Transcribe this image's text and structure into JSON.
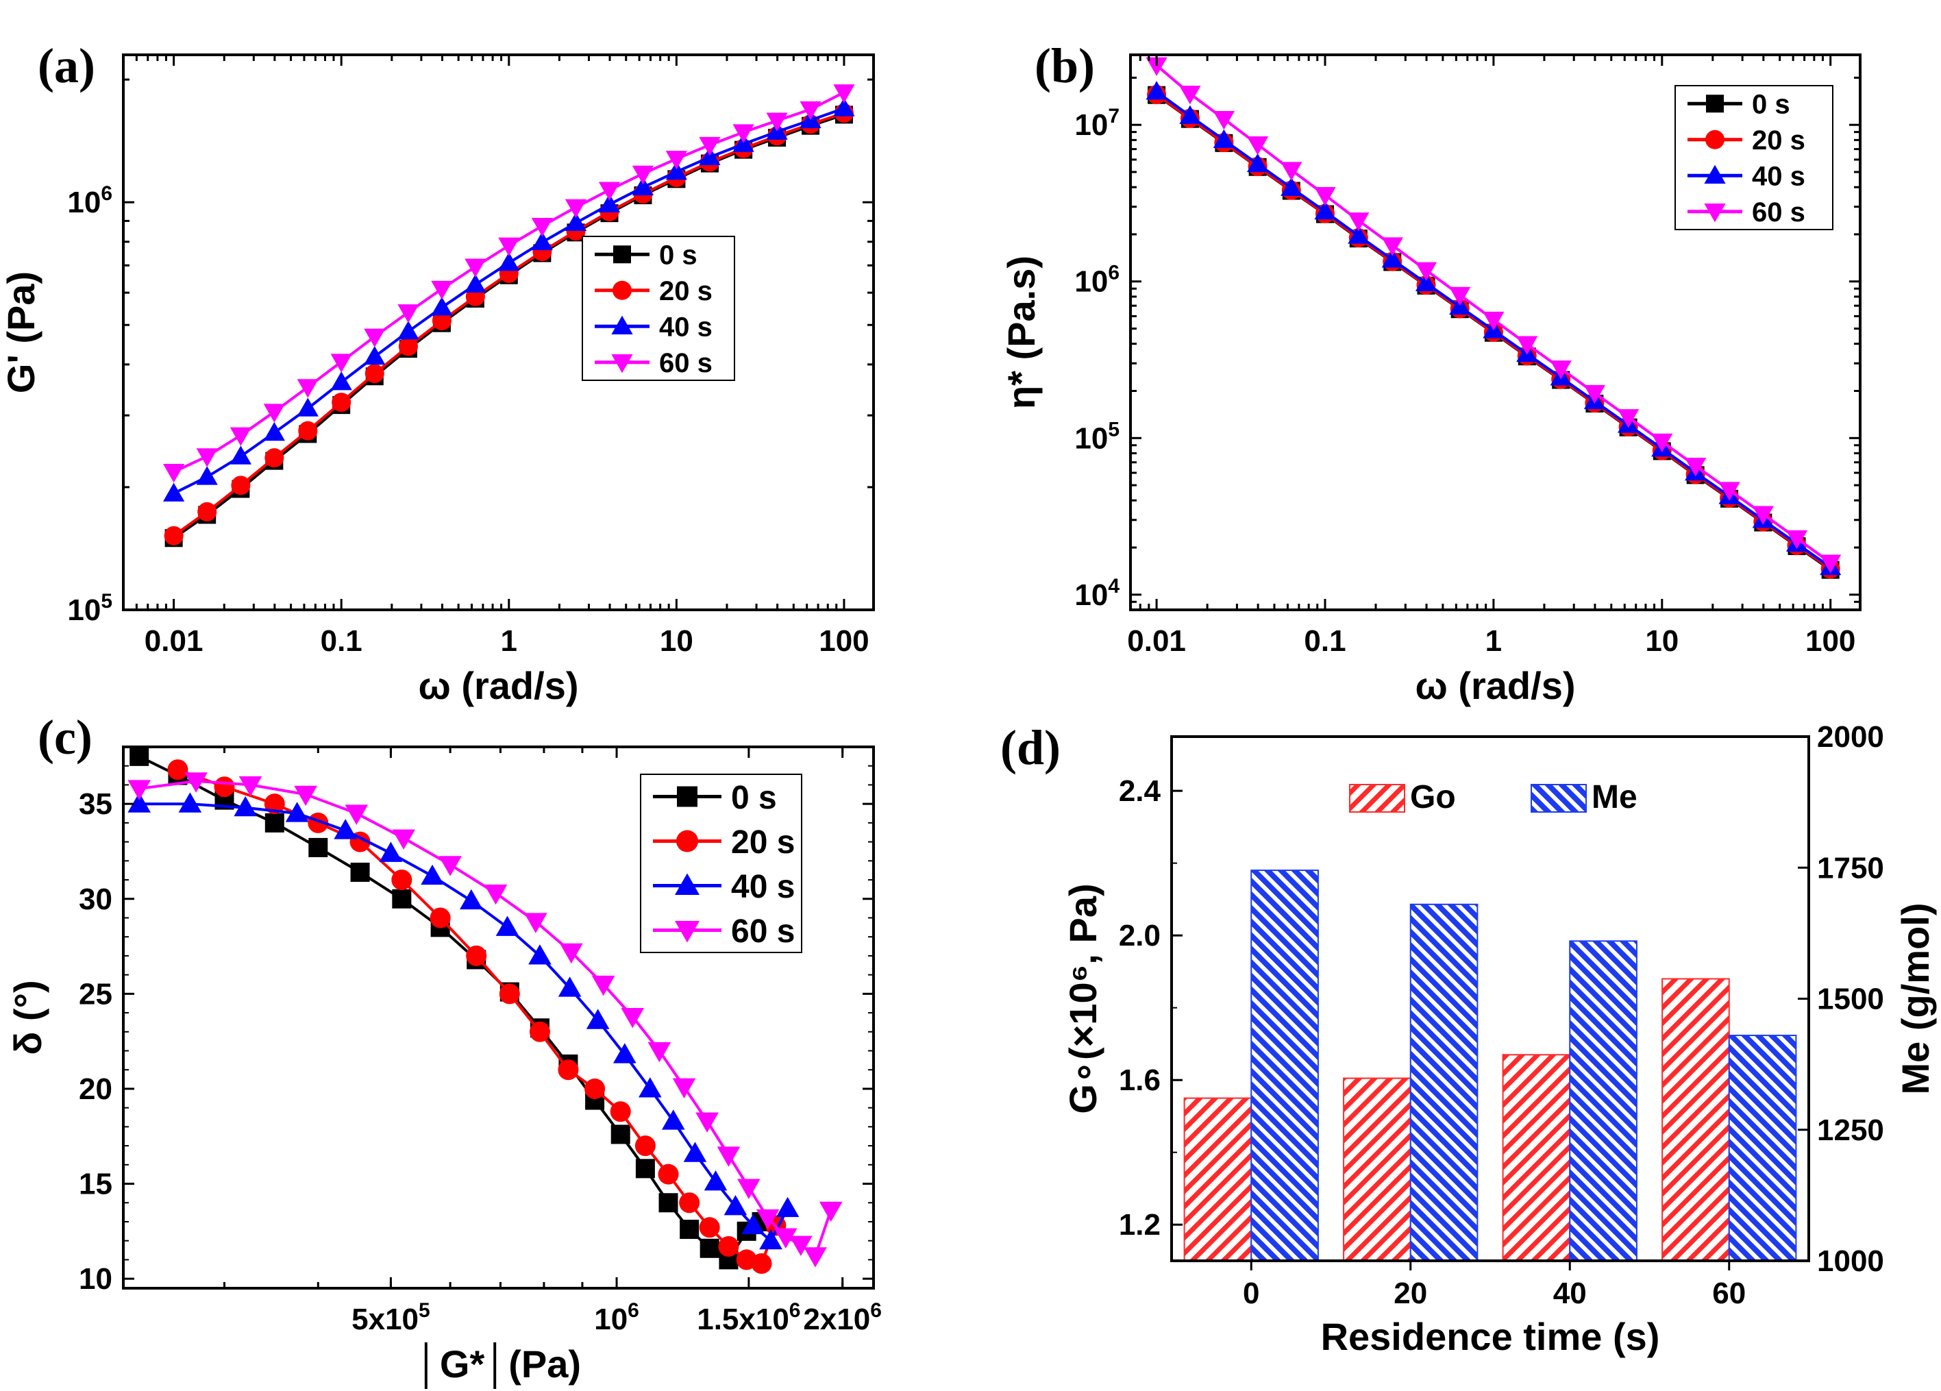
{
  "chart_data": [
    {
      "id": "a",
      "type": "line",
      "panel_label": "(a)",
      "xscale": "log",
      "yscale": "log",
      "xlim": [
        0.005,
        150
      ],
      "ylim": [
        100000,
        2300000
      ],
      "xticks": [
        {
          "v": 0.01,
          "t": "0.01"
        },
        {
          "v": 0.1,
          "t": "0.1"
        },
        {
          "v": 1,
          "t": "1"
        },
        {
          "v": 10,
          "t": "10"
        },
        {
          "v": 100,
          "t": "100"
        }
      ],
      "yticks": [
        {
          "v": 100000,
          "b": "10",
          "e": "5"
        },
        {
          "v": 1000000,
          "b": "10",
          "e": "6"
        }
      ],
      "xlabel": "ω (rad/s)",
      "ylabel": "G' (Pa)",
      "legend": "center-right",
      "x": [
        0.01,
        0.0158,
        0.0251,
        0.0398,
        0.0631,
        0.1,
        0.158,
        0.251,
        0.398,
        0.631,
        1,
        1.58,
        2.51,
        3.98,
        6.31,
        10,
        15.8,
        25.1,
        39.8,
        63.1,
        100
      ],
      "series": [
        {
          "name": "0 s",
          "marker": "square",
          "color": "#000000",
          "values": [
            150000,
            171000,
            198000,
            232000,
            270000,
            318000,
            374000,
            437000,
            505000,
            580000,
            662000,
            750000,
            843000,
            940000,
            1040000,
            1140000,
            1245000,
            1345000,
            1440000,
            1540000,
            1640000
          ]
        },
        {
          "name": "20 s",
          "marker": "circle",
          "color": "#ff0000",
          "values": [
            152000,
            174000,
            202000,
            236000,
            275000,
            323000,
            380000,
            443000,
            512000,
            587000,
            669000,
            757000,
            850000,
            948000,
            1048000,
            1150000,
            1255000,
            1355000,
            1455000,
            1555000,
            1655000
          ]
        },
        {
          "name": "40 s",
          "marker": "triangle-up",
          "color": "#0000ff",
          "values": [
            193000,
            212000,
            238000,
            272000,
            312000,
            362000,
            418000,
            482000,
            552000,
            628000,
            710000,
            798000,
            890000,
            988000,
            1088000,
            1188000,
            1290000,
            1390000,
            1490000,
            1590000,
            1700000
          ]
        },
        {
          "name": "60 s",
          "marker": "triangle-down",
          "color": "#ff00ff",
          "values": [
            218000,
            238000,
            268000,
            306000,
            352000,
            406000,
            468000,
            537000,
            613000,
            695000,
            783000,
            875000,
            972000,
            1072000,
            1175000,
            1278000,
            1382000,
            1485000,
            1585000,
            1690000,
            1860000
          ]
        }
      ]
    },
    {
      "id": "b",
      "type": "line",
      "panel_label": "(b)",
      "xscale": "log",
      "yscale": "log",
      "xlim": [
        0.007,
        150
      ],
      "ylim": [
        8000,
        28000000
      ],
      "xticks": [
        {
          "v": 0.01,
          "t": "0.01"
        },
        {
          "v": 0.1,
          "t": "0.1"
        },
        {
          "v": 1,
          "t": "1"
        },
        {
          "v": 10,
          "t": "10"
        },
        {
          "v": 100,
          "t": "100"
        }
      ],
      "yticks": [
        {
          "v": 10000,
          "b": "10",
          "e": "4"
        },
        {
          "v": 100000,
          "b": "10",
          "e": "5"
        },
        {
          "v": 1000000,
          "b": "10",
          "e": "6"
        },
        {
          "v": 10000000,
          "b": "10",
          "e": "7"
        }
      ],
      "xlabel": "ω (rad/s)",
      "ylabel": "η* (Pa.s)",
      "legend": "top-right",
      "x": [
        0.01,
        0.0158,
        0.0251,
        0.0398,
        0.0631,
        0.1,
        0.158,
        0.251,
        0.398,
        0.631,
        1,
        1.58,
        2.51,
        3.98,
        6.31,
        10,
        15.8,
        25.1,
        39.8,
        63.1,
        100
      ],
      "series": [
        {
          "name": "0 s",
          "marker": "square",
          "color": "#000000",
          "values": [
            15500000,
            10900000,
            7650000,
            5380000,
            3790000,
            2690000,
            1880000,
            1330000,
            940000,
            665000,
            470000,
            332000,
            235000,
            166000,
            117000,
            82500,
            58000,
            41000,
            28900,
            20400,
            14400
          ]
        },
        {
          "name": "20 s",
          "marker": "circle",
          "color": "#ff0000",
          "values": [
            15600000,
            11000000,
            7700000,
            5420000,
            3820000,
            2710000,
            1900000,
            1340000,
            948000,
            670000,
            474000,
            335000,
            237000,
            167500,
            118000,
            83200,
            58600,
            41400,
            29200,
            20600,
            14600
          ]
        },
        {
          "name": "40 s",
          "marker": "triangle-up",
          "color": "#0000ff",
          "values": [
            16300000,
            11400000,
            8000000,
            5620000,
            3960000,
            2800000,
            1960000,
            1380000,
            975000,
            690000,
            488000,
            345000,
            244000,
            172000,
            121500,
            85600,
            60300,
            42600,
            30000,
            21200,
            15000
          ]
        },
        {
          "name": "60 s",
          "marker": "triangle-down",
          "color": "#ff00ff",
          "values": [
            24000000,
            15800000,
            10900000,
            7500000,
            5150000,
            3560000,
            2450000,
            1700000,
            1180000,
            820000,
            570000,
            398000,
            278000,
            194000,
            136000,
            95000,
            66500,
            46600,
            32700,
            22900,
            16000
          ]
        }
      ]
    },
    {
      "id": "c",
      "type": "line",
      "panel_label": "(c)",
      "xscale": "log",
      "yscale": "linear",
      "xlim": [
        220000,
        2200000
      ],
      "ylim": [
        9.5,
        38
      ],
      "xticks": [
        {
          "v": 500000,
          "b": "5x10",
          "e": "5"
        },
        {
          "v": 1000000,
          "b": "10",
          "e": "6"
        },
        {
          "v": 1500000,
          "b": "1.5x10",
          "e": "6"
        },
        {
          "v": 2000000,
          "b": "2x10",
          "e": "6"
        }
      ],
      "yticks": [
        {
          "v": 10,
          "t": "10"
        },
        {
          "v": 15,
          "t": "15"
        },
        {
          "v": 20,
          "t": "20"
        },
        {
          "v": 25,
          "t": "25"
        },
        {
          "v": 30,
          "t": "30"
        },
        {
          "v": 35,
          "t": "35"
        }
      ],
      "xlabel": "│G*│(Pa)",
      "ylabel": "δ (°)",
      "legend": "top-right",
      "series": [
        {
          "name": "0 s",
          "marker": "square",
          "color": "#000000",
          "x": [
            231000,
            260000,
            300000,
            350000,
            400000,
            455000,
            517000,
            582000,
            650000,
            720000,
            790000,
            862000,
            935000,
            1012000,
            1092000,
            1172000,
            1250000,
            1330000,
            1410000,
            1490000,
            1560000
          ],
          "y": [
            37.5,
            36.5,
            35.2,
            34.0,
            32.7,
            31.4,
            30.0,
            28.5,
            26.8,
            25.1,
            23.2,
            21.3,
            19.4,
            17.6,
            15.8,
            14.0,
            12.6,
            11.6,
            11.0,
            12.5,
            13.0
          ]
        },
        {
          "name": "20 s",
          "marker": "circle",
          "color": "#ff0000",
          "x": [
            260000,
            300000,
            350000,
            400000,
            455000,
            517000,
            582000,
            650000,
            720000,
            790000,
            862000,
            935000,
            1012000,
            1092000,
            1172000,
            1250000,
            1330000,
            1410000,
            1490000,
            1560000,
            1630000
          ],
          "y": [
            36.8,
            35.9,
            35.0,
            34.0,
            33.0,
            31.0,
            29.0,
            27.0,
            25.0,
            23.0,
            21.0,
            20.0,
            18.8,
            17.0,
            15.5,
            14.0,
            12.7,
            11.7,
            11.0,
            10.8,
            12.8
          ]
        },
        {
          "name": "40 s",
          "marker": "triangle-up",
          "color": "#0000ff",
          "x": [
            231000,
            270000,
            320000,
            375000,
            435000,
            500000,
            568000,
            640000,
            715000,
            790000,
            866000,
            944000,
            1025000,
            1108000,
            1190000,
            1272000,
            1355000,
            1440000,
            1520000,
            1605000,
            1690000
          ],
          "y": [
            35.0,
            35.0,
            34.8,
            34.5,
            33.6,
            32.4,
            31.2,
            29.9,
            28.5,
            27.0,
            25.3,
            23.6,
            21.8,
            20.0,
            18.3,
            16.6,
            15.1,
            13.8,
            12.8,
            12.0,
            13.7
          ]
        },
        {
          "name": "60 s",
          "marker": "triangle-down",
          "color": "#ff00ff",
          "x": [
            231000,
            275000,
            325000,
            385000,
            450000,
            520000,
            600000,
            690000,
            780000,
            870000,
            960000,
            1050000,
            1140000,
            1230000,
            1320000,
            1410000,
            1500000,
            1590000,
            1680000,
            1760000,
            1840000,
            1930000
          ],
          "y": [
            35.8,
            36.2,
            36.0,
            35.5,
            34.5,
            33.2,
            31.8,
            30.3,
            28.8,
            27.2,
            25.5,
            23.8,
            22.0,
            20.1,
            18.3,
            16.5,
            14.8,
            13.2,
            12.2,
            11.8,
            11.2,
            13.6
          ]
        }
      ]
    },
    {
      "id": "d",
      "type": "bar",
      "panel_label": "(d)",
      "categories": [
        "0",
        "20",
        "40",
        "60"
      ],
      "xlabel": "Residence time (s)",
      "ylabel_left": "G∘(×10⁶, Pa)",
      "ylabel_right": "Me (g/mol)",
      "ylim_left": [
        1.1,
        2.55
      ],
      "ylim_right": [
        1000,
        2000
      ],
      "yticks_left": [
        {
          "v": 1.2,
          "t": "1.2"
        },
        {
          "v": 1.6,
          "t": "1.6"
        },
        {
          "v": 2.0,
          "t": "2.0"
        },
        {
          "v": 2.4,
          "t": "2.4"
        }
      ],
      "yticks_right": [
        {
          "v": 1000,
          "t": "1000"
        },
        {
          "v": 1250,
          "t": "1250"
        },
        {
          "v": 1500,
          "t": "1500"
        },
        {
          "v": 1750,
          "t": "1750"
        },
        {
          "v": 2000,
          "t": "2000"
        }
      ],
      "legend": "top-center",
      "series": [
        {
          "name": "Go",
          "axis": "left",
          "color": "#ff2a2a",
          "values": [
            1.55,
            1.605,
            1.67,
            1.88
          ]
        },
        {
          "name": "Me",
          "axis": "right",
          "color": "#1d3cf0",
          "values": [
            1745,
            1680,
            1610,
            1430
          ]
        }
      ]
    }
  ]
}
